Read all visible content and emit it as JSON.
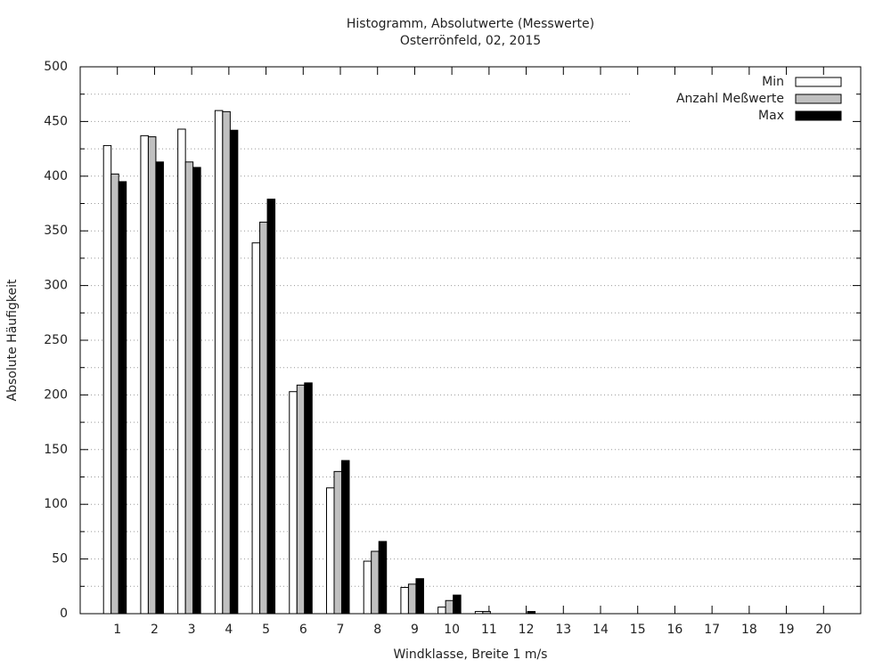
{
  "chart_data": {
    "type": "bar",
    "title": "Histogramm, Absolutwerte (Messwerte)",
    "subtitle": "Osterrönfeld, 02, 2015",
    "x_label": "Windklasse, Breite 1 m/s",
    "y_label": "Absolute Häufigkeit",
    "categories": [
      "1",
      "2",
      "3",
      "4",
      "5",
      "6",
      "7",
      "8",
      "9",
      "10",
      "11",
      "12",
      "13",
      "14",
      "15",
      "16",
      "17",
      "18",
      "19",
      "20"
    ],
    "series": [
      {
        "name": "Min",
        "color": "#ffffff",
        "values": [
          428,
          437,
          443,
          460,
          339,
          203,
          115,
          48,
          24,
          6,
          2,
          0,
          0,
          0,
          0,
          0,
          0,
          0,
          0,
          0
        ]
      },
      {
        "name": "Anzahl Meßwerte",
        "color": "#c0c0c0",
        "values": [
          402,
          436,
          413,
          459,
          358,
          209,
          130,
          57,
          27,
          12,
          2,
          0,
          0,
          0,
          0,
          0,
          0,
          0,
          0,
          0
        ]
      },
      {
        "name": "Max",
        "color": "#000000",
        "values": [
          395,
          413,
          408,
          442,
          379,
          211,
          140,
          66,
          32,
          17,
          0,
          2,
          0,
          0,
          0,
          0,
          0,
          0,
          0,
          0
        ]
      }
    ],
    "ylim": [
      0,
      500
    ],
    "yticks": [
      0,
      50,
      100,
      150,
      200,
      250,
      300,
      350,
      400,
      450,
      500
    ],
    "y_minor_ticks": [
      25,
      75,
      125,
      175,
      225,
      275,
      325,
      375,
      425,
      475
    ],
    "grid": true,
    "legend": "top-right"
  }
}
